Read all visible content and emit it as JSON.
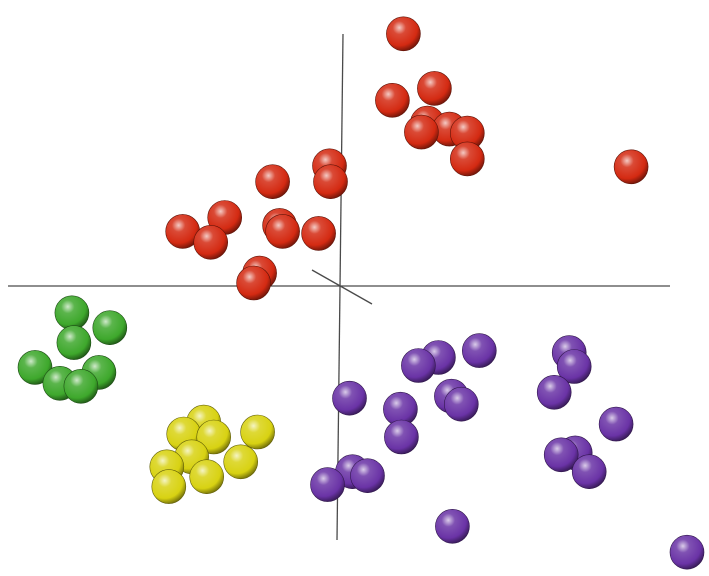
{
  "chart_data": {
    "type": "scatter",
    "title": "",
    "xlabel": "",
    "ylabel": "",
    "grid": false,
    "legend": "none",
    "xlim": [
      -340,
      370
    ],
    "ylim": [
      -290,
      290
    ],
    "series": [
      {
        "color": "#d42a12",
        "points": [
          [
            64,
            256
          ],
          [
            53,
            189
          ],
          [
            95,
            201
          ],
          [
            88,
            166
          ],
          [
            110,
            160
          ],
          [
            128,
            156
          ],
          [
            82,
            157
          ],
          [
            128,
            130
          ],
          [
            292,
            122
          ],
          [
            -10,
            123
          ],
          [
            -9,
            107
          ],
          [
            -67,
            107
          ],
          [
            -115,
            71
          ],
          [
            -157,
            57
          ],
          [
            -129,
            46
          ],
          [
            -60,
            63
          ],
          [
            -57,
            57
          ],
          [
            -21,
            55
          ],
          [
            -80,
            15
          ],
          [
            -86,
            5
          ]
        ]
      },
      {
        "color": "#3ea82c",
        "points": [
          [
            -268,
            -25
          ],
          [
            -230,
            -40
          ],
          [
            -266,
            -55
          ],
          [
            -305,
            -80
          ],
          [
            -241,
            -85
          ],
          [
            -280,
            -96
          ],
          [
            -259,
            -99
          ]
        ]
      },
      {
        "color": "#d8d212",
        "points": [
          [
            -136,
            -135
          ],
          [
            -156,
            -147
          ],
          [
            -126,
            -150
          ],
          [
            -82,
            -145
          ],
          [
            -148,
            -170
          ],
          [
            -99,
            -175
          ],
          [
            -173,
            -180
          ],
          [
            -133,
            -190
          ],
          [
            -171,
            -200
          ]
        ]
      },
      {
        "color": "#6a33a6",
        "points": [
          [
            140,
            -63
          ],
          [
            99,
            -70
          ],
          [
            79,
            -78
          ],
          [
            230,
            -65
          ],
          [
            235,
            -79
          ],
          [
            112,
            -109
          ],
          [
            122,
            -117
          ],
          [
            10,
            -111
          ],
          [
            61,
            -122
          ],
          [
            215,
            -105
          ],
          [
            277,
            -137
          ],
          [
            62,
            -150
          ],
          [
            222,
            -168
          ],
          [
            236,
            -166
          ],
          [
            250,
            -185
          ],
          [
            13,
            -185
          ],
          [
            28,
            -189
          ],
          [
            -12,
            -198
          ],
          [
            113,
            -240
          ],
          [
            348,
            -266
          ]
        ]
      }
    ]
  }
}
